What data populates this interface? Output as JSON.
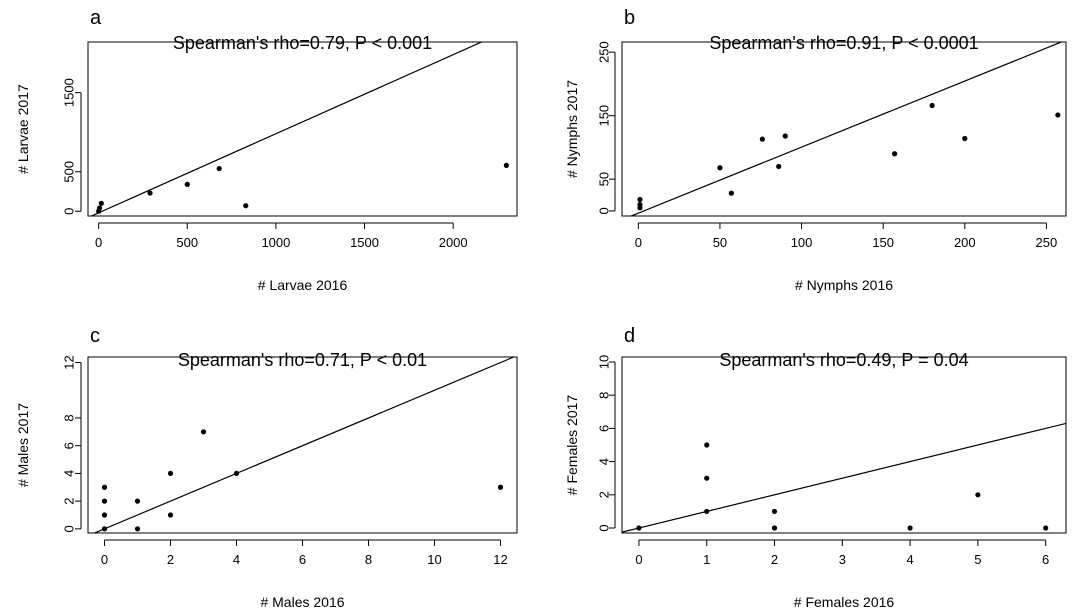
{
  "chart_data": [
    {
      "type": "scatter",
      "panel": "a",
      "title": "Spearman's rho=0.79, P < 0.001",
      "xlabel": "# Larvae 2016",
      "ylabel": "# Larvae 2017",
      "xlim": [
        -60,
        2360
      ],
      "ylim": [
        -60,
        2140
      ],
      "xticks": [
        0,
        500,
        1000,
        1500,
        2000
      ],
      "yticks": [
        0,
        500,
        1500
      ],
      "points": [
        [
          0,
          0
        ],
        [
          5,
          40
        ],
        [
          15,
          100
        ],
        [
          290,
          230
        ],
        [
          500,
          340
        ],
        [
          680,
          540
        ],
        [
          830,
          70
        ],
        [
          2300,
          580
        ]
      ],
      "fit_line": {
        "slope": 1.0,
        "intercept": -20
      },
      "grid": false,
      "legend": "none"
    },
    {
      "type": "scatter",
      "panel": "b",
      "title": "Spearman's rho=0.91, P < 0.0001",
      "xlabel": "# Nymphs 2016",
      "ylabel": "# Nymphs 2017",
      "xlim": [
        -10,
        262
      ],
      "ylim": [
        -8,
        266
      ],
      "xticks": [
        0,
        50,
        100,
        150,
        200,
        250
      ],
      "yticks": [
        0,
        50,
        150,
        250
      ],
      "points": [
        [
          1,
          5
        ],
        [
          1,
          10
        ],
        [
          1,
          18
        ],
        [
          50,
          68
        ],
        [
          57,
          28
        ],
        [
          76,
          113
        ],
        [
          86,
          70
        ],
        [
          90,
          118
        ],
        [
          157,
          90
        ],
        [
          180,
          166
        ],
        [
          200,
          114
        ],
        [
          257,
          151
        ]
      ],
      "fit_line": {
        "slope": 1.04,
        "intercept": -3.5
      },
      "grid": false,
      "legend": "none"
    },
    {
      "type": "scatter",
      "panel": "c",
      "title": "Spearman's rho=0.71, P < 0.01",
      "xlabel": "# Males 2016",
      "ylabel": "# Males 2017",
      "xlim": [
        -0.5,
        12.5
      ],
      "ylim": [
        -0.3,
        12.4
      ],
      "xticks": [
        0,
        2,
        4,
        6,
        8,
        10,
        12
      ],
      "yticks": [
        0,
        2,
        4,
        6,
        8,
        12
      ],
      "points": [
        [
          0,
          0
        ],
        [
          0,
          1
        ],
        [
          0,
          2
        ],
        [
          0,
          3
        ],
        [
          1,
          0
        ],
        [
          1,
          2
        ],
        [
          2,
          1
        ],
        [
          2,
          4
        ],
        [
          3,
          7
        ],
        [
          4,
          4
        ],
        [
          12,
          3
        ]
      ],
      "fit_line": {
        "slope": 1.0,
        "intercept": 0
      },
      "grid": false,
      "legend": "none"
    },
    {
      "type": "scatter",
      "panel": "d",
      "title": "Spearman's rho=0.49, P = 0.04",
      "xlabel": "# Females 2016",
      "ylabel": "# Females 2017",
      "xlim": [
        -0.25,
        6.3
      ],
      "ylim": [
        -0.3,
        10.3
      ],
      "xticks": [
        0,
        1,
        2,
        3,
        4,
        5,
        6
      ],
      "yticks": [
        0,
        2,
        4,
        6,
        8,
        10
      ],
      "points": [
        [
          0,
          0
        ],
        [
          1,
          1
        ],
        [
          1,
          3
        ],
        [
          1,
          5
        ],
        [
          2,
          0
        ],
        [
          2,
          1
        ],
        [
          4,
          0
        ],
        [
          5,
          2
        ],
        [
          6,
          0
        ]
      ],
      "fit_line": {
        "slope": 1.0,
        "intercept": 0
      },
      "grid": false,
      "legend": "none"
    }
  ]
}
